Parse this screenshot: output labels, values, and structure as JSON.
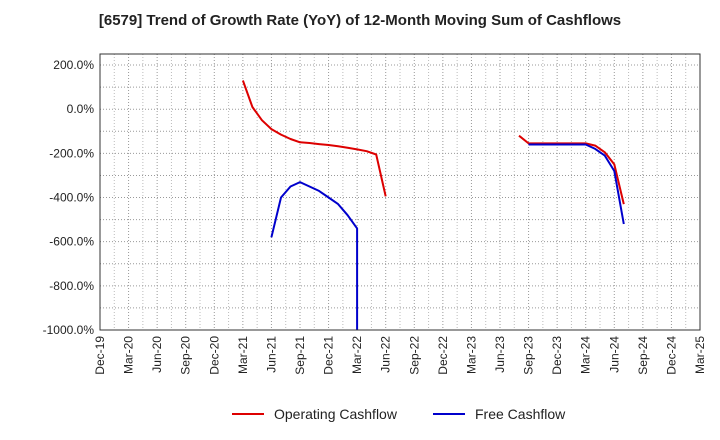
{
  "chart_data": {
    "type": "line",
    "title": "[6579]  Trend of Growth Rate (YoY) of 12-Month Moving Sum of Cashflows",
    "xlabel": "",
    "ylabel": "",
    "ylim": [
      -1000,
      250
    ],
    "grid": true,
    "legend_position": "bottom",
    "y_ticks": [
      200,
      0,
      -200,
      -400,
      -600,
      -800,
      -1000
    ],
    "y_tick_labels": [
      "200.0%",
      "0.0%",
      "-200.0%",
      "-400.0%",
      "-600.0%",
      "-800.0%",
      "-1000.0%"
    ],
    "x_tick_labels": [
      "Dec-19",
      "Mar-20",
      "Jun-20",
      "Sep-20",
      "Dec-20",
      "Mar-21",
      "Jun-21",
      "Sep-21",
      "Dec-21",
      "Mar-22",
      "Jun-22",
      "Sep-22",
      "Dec-22",
      "Mar-23",
      "Jun-23",
      "Sep-23",
      "Dec-23",
      "Mar-24",
      "Jun-24",
      "Sep-24",
      "Dec-24",
      "Mar-25"
    ],
    "series": [
      {
        "name": "Operating Cashflow",
        "color": "#dd0000",
        "points": [
          [
            "Mar-21",
            130
          ],
          [
            "Apr-21",
            10
          ],
          [
            "May-21",
            -50
          ],
          [
            "Jun-21",
            -90
          ],
          [
            "Jul-21",
            -115
          ],
          [
            "Aug-21",
            -135
          ],
          [
            "Sep-21",
            -150
          ],
          [
            "Oct-21",
            -153
          ],
          [
            "Nov-21",
            -158
          ],
          [
            "Dec-21",
            -162
          ],
          [
            "Jan-22",
            -168
          ],
          [
            "Feb-22",
            -175
          ],
          [
            "Mar-22",
            -182
          ],
          [
            "Apr-22",
            -190
          ],
          [
            "May-22",
            -205
          ],
          [
            "Jun-22",
            -395
          ],
          [
            "Aug-23",
            -120
          ],
          [
            "Sep-23",
            -155
          ],
          [
            "Oct-23",
            -155
          ],
          [
            "Nov-23",
            -155
          ],
          [
            "Dec-23",
            -155
          ],
          [
            "Jan-24",
            -155
          ],
          [
            "Feb-24",
            -155
          ],
          [
            "Mar-24",
            -155
          ],
          [
            "Apr-24",
            -165
          ],
          [
            "May-24",
            -195
          ],
          [
            "Jun-24",
            -250
          ],
          [
            "Jul-24",
            -430
          ]
        ]
      },
      {
        "name": "Free Cashflow",
        "color": "#0000cc",
        "points": [
          [
            "Jun-21",
            -580
          ],
          [
            "Jul-21",
            -400
          ],
          [
            "Aug-21",
            -350
          ],
          [
            "Sep-21",
            -330
          ],
          [
            "Oct-21",
            -350
          ],
          [
            "Nov-21",
            -370
          ],
          [
            "Dec-21",
            -400
          ],
          [
            "Jan-22",
            -430
          ],
          [
            "Feb-22",
            -480
          ],
          [
            "Mar-22",
            -540
          ],
          [
            "Mar-22",
            -1000
          ],
          [
            "Sep-23",
            -160
          ],
          [
            "Oct-23",
            -160
          ],
          [
            "Nov-23",
            -160
          ],
          [
            "Dec-23",
            -160
          ],
          [
            "Jan-24",
            -160
          ],
          [
            "Feb-24",
            -160
          ],
          [
            "Mar-24",
            -160
          ],
          [
            "Apr-24",
            -180
          ],
          [
            "May-24",
            -210
          ],
          [
            "Jun-24",
            -280
          ],
          [
            "Jul-24",
            -520
          ]
        ]
      }
    ]
  }
}
